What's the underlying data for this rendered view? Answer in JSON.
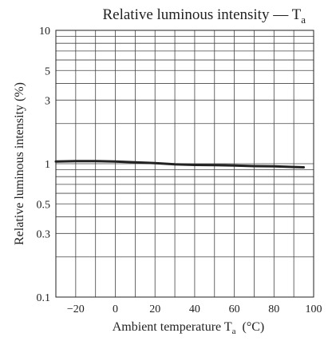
{
  "chart_data": {
    "type": "line",
    "title": "Relative luminous intensity — T",
    "title_subscript": "a",
    "xlabel": "Ambient temperature  T",
    "xlabel_subscript": "a",
    "xlabel_unit": "(°C)",
    "ylabel": "Relative luminous intensity  (%)",
    "x_scale": "linear",
    "y_scale": "log",
    "xlim": [
      -30,
      100
    ],
    "ylim": [
      0.1,
      10
    ],
    "grid": true,
    "x_ticks": [
      -20,
      0,
      20,
      40,
      60,
      80,
      100
    ],
    "x_tick_labels": [
      "−20",
      "0",
      "20",
      "40",
      "60",
      "80",
      "100"
    ],
    "y_ticks": [
      0.1,
      0.3,
      0.5,
      1,
      3,
      5,
      10
    ],
    "y_tick_labels": [
      "0.1",
      "0.3",
      "0.5",
      "1",
      "3",
      "5",
      "10"
    ],
    "series": [
      {
        "x": [
          -30,
          -20,
          -10,
          0,
          10,
          20,
          30,
          40,
          50,
          60,
          70,
          80,
          90,
          95
        ],
        "y": [
          1.04,
          1.045,
          1.045,
          1.04,
          1.025,
          1.01,
          0.99,
          0.98,
          0.975,
          0.97,
          0.96,
          0.955,
          0.945,
          0.94
        ]
      }
    ]
  }
}
